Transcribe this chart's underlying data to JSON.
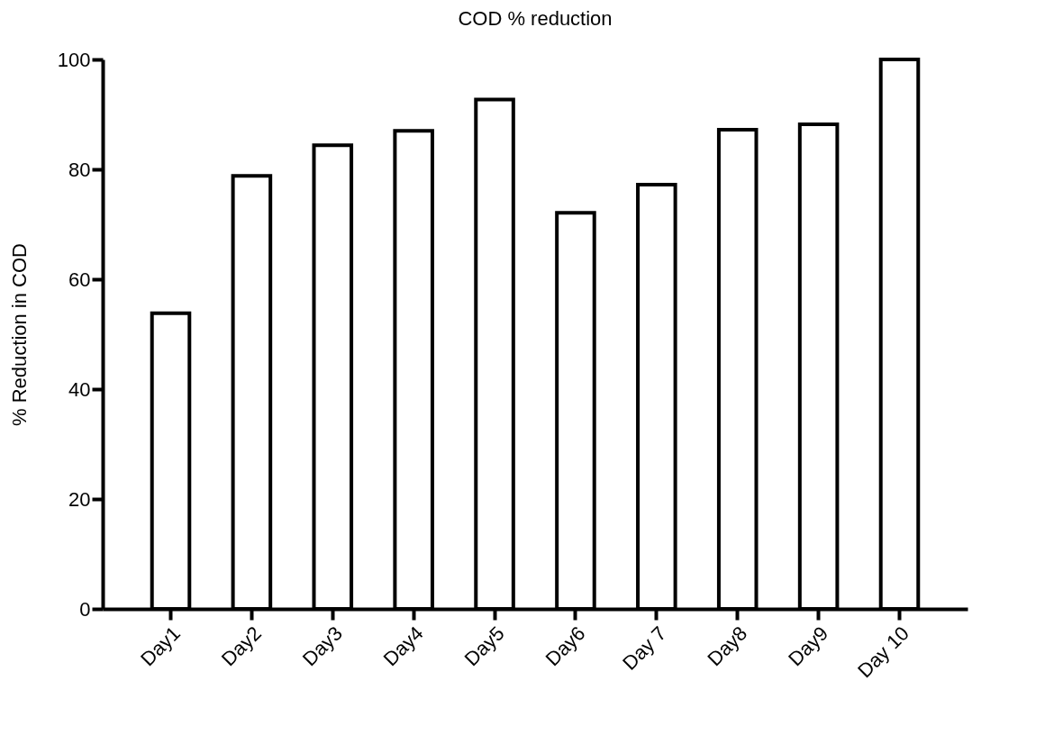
{
  "chart_data": {
    "type": "bar",
    "title": "COD % reduction",
    "ylabel": "% Reduction  in COD",
    "categories": [
      "Day1",
      "Day2",
      "Day3",
      "Day4",
      "Day5",
      "Day6",
      "Day 7",
      "Day8",
      "Day9",
      "Day 10"
    ],
    "values": [
      53.8,
      78.8,
      84.4,
      87,
      92.7,
      72.1,
      77.2,
      87.2,
      88.2,
      100
    ],
    "color": "#ffffff",
    "ylim": [
      0,
      100
    ],
    "yticks": [
      0,
      20,
      40,
      60,
      80,
      100
    ],
    "grid": false
  }
}
